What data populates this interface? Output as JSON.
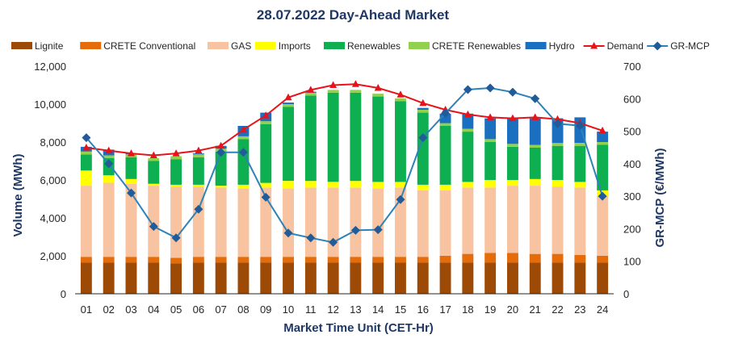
{
  "chart_data": {
    "type": "stacked-bar-with-lines",
    "title": "28.07.2022  Day-Ahead Market",
    "xlabel": "Market Time Unit (CET-Hr)",
    "ylabel": "Volume (MWh)",
    "y2label": "GR-MCP (€/MWh)",
    "ylim": [
      0,
      12000
    ],
    "y2lim": [
      0,
      700
    ],
    "yticks": [
      "0",
      "2,000",
      "4,000",
      "6,000",
      "8,000",
      "10,000",
      "12,000"
    ],
    "y2ticks": [
      "0",
      "100",
      "200",
      "300",
      "400",
      "500",
      "600",
      "700"
    ],
    "categories": [
      "01",
      "02",
      "03",
      "04",
      "05",
      "06",
      "07",
      "08",
      "09",
      "10",
      "11",
      "12",
      "13",
      "14",
      "15",
      "16",
      "17",
      "18",
      "19",
      "20",
      "21",
      "22",
      "23",
      "24"
    ],
    "series": [
      {
        "name": "Lignite",
        "color": "#9C4A06",
        "values": [
          1650,
          1650,
          1650,
          1650,
          1600,
          1650,
          1650,
          1650,
          1650,
          1650,
          1650,
          1650,
          1650,
          1650,
          1650,
          1650,
          1650,
          1650,
          1650,
          1650,
          1650,
          1650,
          1650,
          1650
        ]
      },
      {
        "name": "CRETE Conventional",
        "color": "#E46C0A",
        "values": [
          300,
          300,
          300,
          300,
          300,
          300,
          300,
          300,
          300,
          300,
          300,
          300,
          300,
          300,
          300,
          300,
          350,
          450,
          500,
          500,
          450,
          450,
          400,
          350
        ]
      },
      {
        "name": "GAS",
        "color": "#F8C3A0",
        "values": [
          3750,
          3900,
          3850,
          3750,
          3750,
          3700,
          3650,
          3600,
          3650,
          3600,
          3650,
          3650,
          3650,
          3600,
          3650,
          3500,
          3450,
          3500,
          3450,
          3550,
          3600,
          3550,
          3550,
          3150
        ]
      },
      {
        "name": "Imports",
        "color": "#FFFF00",
        "values": [
          800,
          400,
          250,
          100,
          100,
          100,
          100,
          200,
          250,
          400,
          350,
          300,
          350,
          350,
          300,
          300,
          300,
          300,
          400,
          300,
          350,
          350,
          300,
          300
        ]
      },
      {
        "name": "Renewables",
        "color": "#0DAF50",
        "values": [
          850,
          900,
          1150,
          1200,
          1350,
          1450,
          1800,
          2400,
          3100,
          3900,
          4500,
          4700,
          4650,
          4500,
          4250,
          3800,
          3100,
          2650,
          2000,
          1750,
          1650,
          1800,
          1900,
          2400
        ]
      },
      {
        "name": "CRETE Renewables",
        "color": "#92D050",
        "values": [
          150,
          150,
          150,
          150,
          150,
          150,
          150,
          150,
          150,
          150,
          150,
          150,
          150,
          150,
          150,
          150,
          150,
          150,
          150,
          150,
          150,
          150,
          150,
          150
        ]
      },
      {
        "name": "Hydro",
        "color": "#1A6FC0",
        "values": [
          250,
          300,
          50,
          0,
          0,
          50,
          150,
          550,
          450,
          80,
          50,
          0,
          0,
          0,
          0,
          100,
          500,
          800,
          1100,
          1350,
          1400,
          1300,
          1350,
          550
        ]
      }
    ],
    "lines": [
      {
        "name": "Demand",
        "axis": "left",
        "color": "#E8131A",
        "marker": "triangle",
        "values": [
          7700,
          7550,
          7400,
          7300,
          7400,
          7550,
          7800,
          8650,
          9400,
          10350,
          10750,
          11000,
          11050,
          10850,
          10500,
          10050,
          9700,
          9450,
          9300,
          9250,
          9300,
          9200,
          9000,
          8600
        ]
      },
      {
        "name": "GR-MCP",
        "axis": "right",
        "color": "#1F5C99",
        "line_color": "#2E82B8",
        "marker": "diamond",
        "values": [
          480,
          400,
          310,
          207,
          172,
          260,
          435,
          435,
          297,
          187,
          172,
          158,
          195,
          197,
          290,
          480,
          555,
          628,
          633,
          620,
          600,
          523,
          517,
          300
        ]
      }
    ],
    "legend_position": "top",
    "grid": false
  }
}
